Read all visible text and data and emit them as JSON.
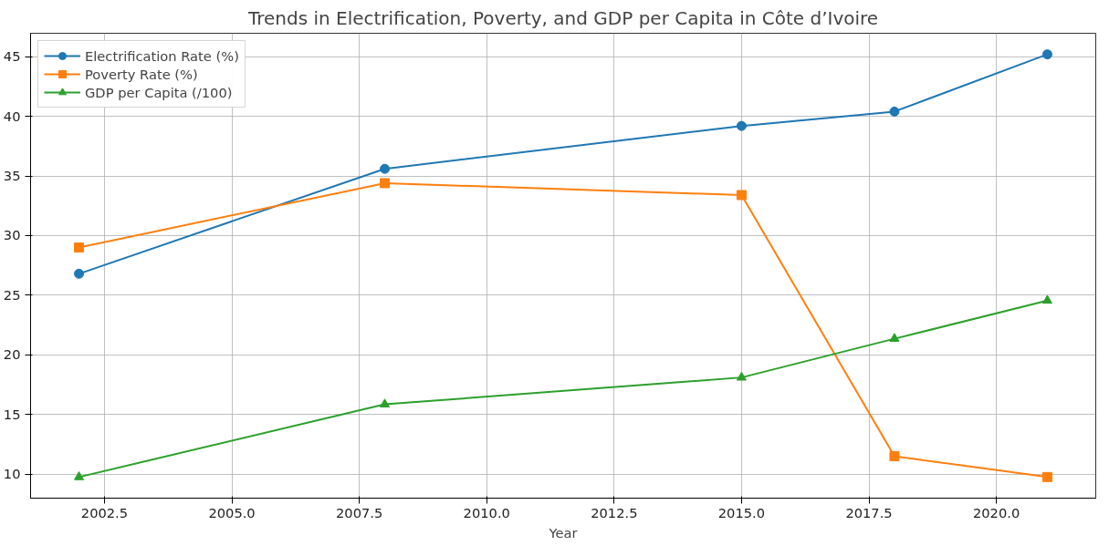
{
  "chart_data": {
    "type": "line",
    "title": "Trends in Electrification, Poverty, and GDP per Capita in Côte d’Ivoire",
    "xlabel": "Year",
    "x": [
      2002,
      2008,
      2015,
      2018,
      2021
    ],
    "series": [
      {
        "name": "Electrification Rate (%)",
        "color": "#1f77b4",
        "marker": "circle",
        "values": [
          26.8,
          35.6,
          39.2,
          40.4,
          45.2
        ]
      },
      {
        "name": "Poverty Rate (%)",
        "color": "#ff7f0e",
        "marker": "square",
        "values": [
          29.0,
          34.4,
          33.4,
          11.5,
          9.75
        ]
      },
      {
        "name": "GDP per Capita (/100)",
        "color": "#2ca02c",
        "marker": "triangle",
        "values": [
          9.75,
          15.85,
          18.1,
          21.35,
          24.55
        ]
      }
    ],
    "xlim": [
      2001.05,
      2021.95
    ],
    "xticks": [
      {
        "value": 2002.5,
        "label": "2002.5"
      },
      {
        "value": 2005,
        "label": "2005.0"
      },
      {
        "value": 2007.5,
        "label": "2007.5"
      },
      {
        "value": 2010,
        "label": "2010.0"
      },
      {
        "value": 2012.5,
        "label": "2012.5"
      },
      {
        "value": 2015,
        "label": "2015.0"
      },
      {
        "value": 2017.5,
        "label": "2017.5"
      },
      {
        "value": 2020,
        "label": "2020.0"
      }
    ],
    "ylim": [
      7.98,
      46.97
    ],
    "yticks": [
      10,
      15,
      20,
      25,
      30,
      35,
      40,
      45
    ],
    "grid": true,
    "legend": "top left",
    "line_style": "solid"
  }
}
